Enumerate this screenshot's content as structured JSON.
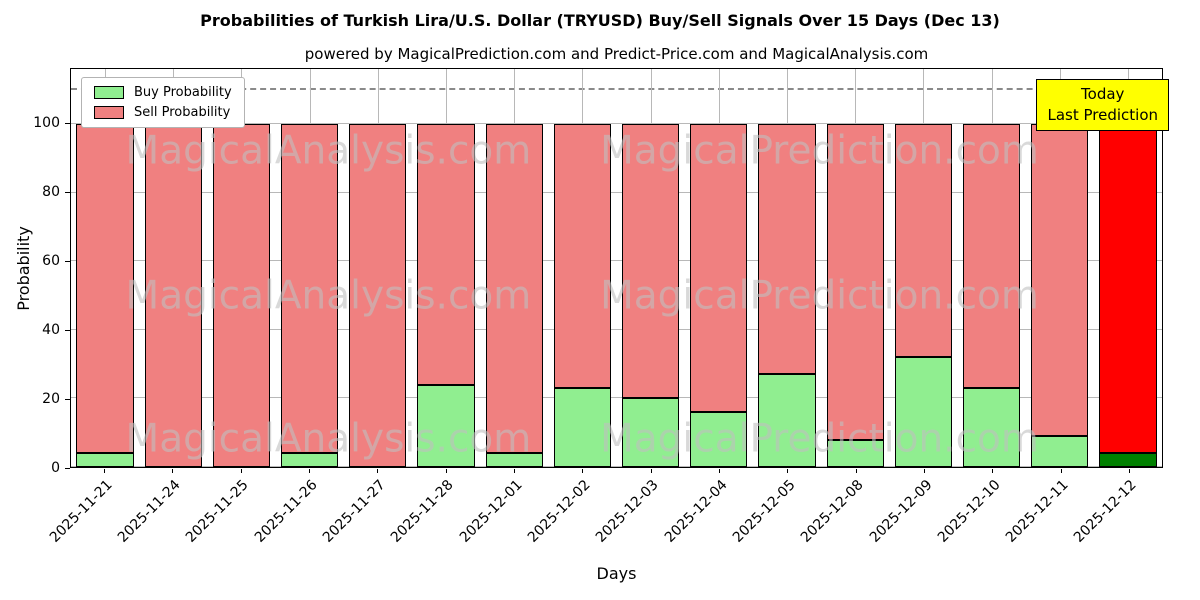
{
  "title": "Probabilities of Turkish Lira/U.S. Dollar (TRYUSD) Buy/Sell Signals Over 15 Days (Dec 13)",
  "subtitle": "powered by MagicalPrediction.com and Predict-Price.com and MagicalAnalysis.com",
  "annotation": {
    "line1": "Today",
    "line2": "Last Prediction",
    "bg_color": "#ffff00"
  },
  "legend": [
    {
      "label": "Buy Probability",
      "color": "#90ee90"
    },
    {
      "label": "Sell Probability",
      "color": "#f08080"
    }
  ],
  "watermarks": [
    "MagicalAnalysis.com",
    "MagicalPrediction.com"
  ],
  "chart_data": {
    "type": "bar",
    "stacked": true,
    "title": "Probabilities of Turkish Lira/U.S. Dollar (TRYUSD) Buy/Sell Signals Over 15 Days (Dec 13)",
    "xlabel": "Days",
    "ylabel": "Probability",
    "ylim": [
      0,
      116
    ],
    "yticks": [
      0,
      20,
      40,
      60,
      80,
      100
    ],
    "dashed_line_y": 110,
    "grid": true,
    "legend_position": "upper-left",
    "categories": [
      "2025-11-21",
      "2025-11-24",
      "2025-11-25",
      "2025-11-26",
      "2025-11-27",
      "2025-11-28",
      "2025-12-01",
      "2025-12-02",
      "2025-12-03",
      "2025-12-04",
      "2025-12-05",
      "2025-12-08",
      "2025-12-09",
      "2025-12-10",
      "2025-12-11",
      "2025-12-12"
    ],
    "series": [
      {
        "name": "Buy Probability",
        "color": "#90ee90",
        "today_color": "#008000",
        "values": [
          4,
          0,
          0,
          4,
          0,
          24,
          4,
          23,
          20,
          16,
          27,
          8,
          32,
          23,
          9,
          4
        ]
      },
      {
        "name": "Sell Probability",
        "color": "#f08080",
        "today_color": "#ff0000",
        "values": [
          96,
          100,
          100,
          96,
          100,
          76,
          96,
          77,
          80,
          84,
          73,
          92,
          68,
          77,
          91,
          96
        ]
      }
    ]
  }
}
